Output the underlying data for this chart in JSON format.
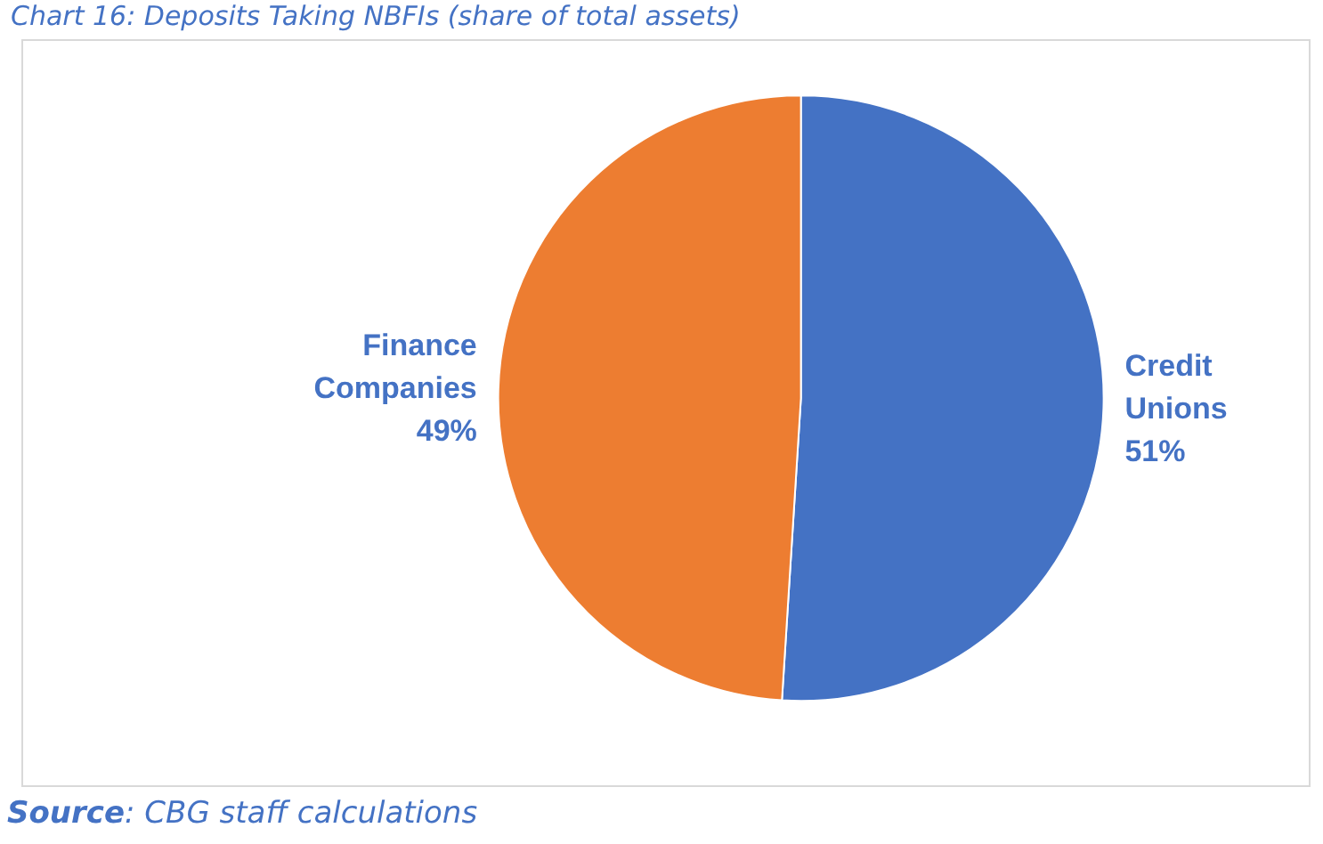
{
  "chart_data": {
    "type": "pie",
    "title": "Chart 16: Deposits Taking NBFIs (share of total assets)",
    "categories": [
      "Credit Unions",
      "Finance Companies"
    ],
    "values": [
      51,
      49
    ],
    "colors": [
      "#4472c4",
      "#ed7d31"
    ],
    "value_labels": [
      "51%",
      "49%"
    ],
    "annotations": [
      "Source: CBG staff calculations"
    ],
    "legend": false
  }
}
